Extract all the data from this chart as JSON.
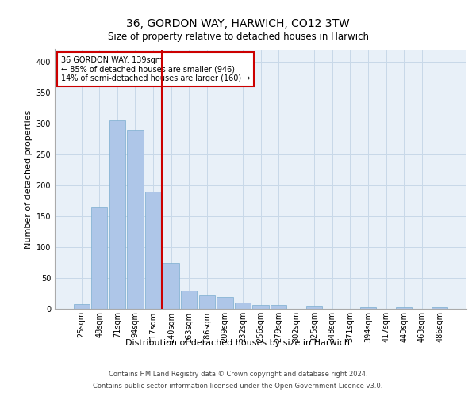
{
  "title": "36, GORDON WAY, HARWICH, CO12 3TW",
  "subtitle": "Size of property relative to detached houses in Harwich",
  "xlabel": "Distribution of detached houses by size in Harwich",
  "ylabel": "Number of detached properties",
  "categories": [
    "25sqm",
    "48sqm",
    "71sqm",
    "94sqm",
    "117sqm",
    "140sqm",
    "163sqm",
    "186sqm",
    "209sqm",
    "232sqm",
    "256sqm",
    "279sqm",
    "302sqm",
    "325sqm",
    "348sqm",
    "371sqm",
    "394sqm",
    "417sqm",
    "440sqm",
    "463sqm",
    "486sqm"
  ],
  "values": [
    8,
    165,
    305,
    290,
    190,
    75,
    30,
    22,
    19,
    10,
    7,
    7,
    0,
    5,
    0,
    0,
    3,
    0,
    2,
    0,
    2
  ],
  "bar_color": "#aec6e8",
  "bar_edge_color": "#7aadcf",
  "bar_linewidth": 0.5,
  "property_line_color": "#cc0000",
  "annotation_box_color": "#ffffff",
  "annotation_box_edge_color": "#cc0000",
  "annotation_text_line1": "36 GORDON WAY: 139sqm",
  "annotation_text_line2": "← 85% of detached houses are smaller (946)",
  "annotation_text_line3": "14% of semi-detached houses are larger (160) →",
  "grid_color": "#c8d8e8",
  "plot_background_color": "#e8f0f8",
  "ylim": [
    0,
    420
  ],
  "yticks": [
    0,
    50,
    100,
    150,
    200,
    250,
    300,
    350,
    400
  ],
  "title_fontsize": 10,
  "subtitle_fontsize": 8.5,
  "tick_fontsize": 7,
  "ylabel_fontsize": 8,
  "xlabel_fontsize": 8,
  "footer_line1": "Contains HM Land Registry data © Crown copyright and database right 2024.",
  "footer_line2": "Contains public sector information licensed under the Open Government Licence v3.0."
}
